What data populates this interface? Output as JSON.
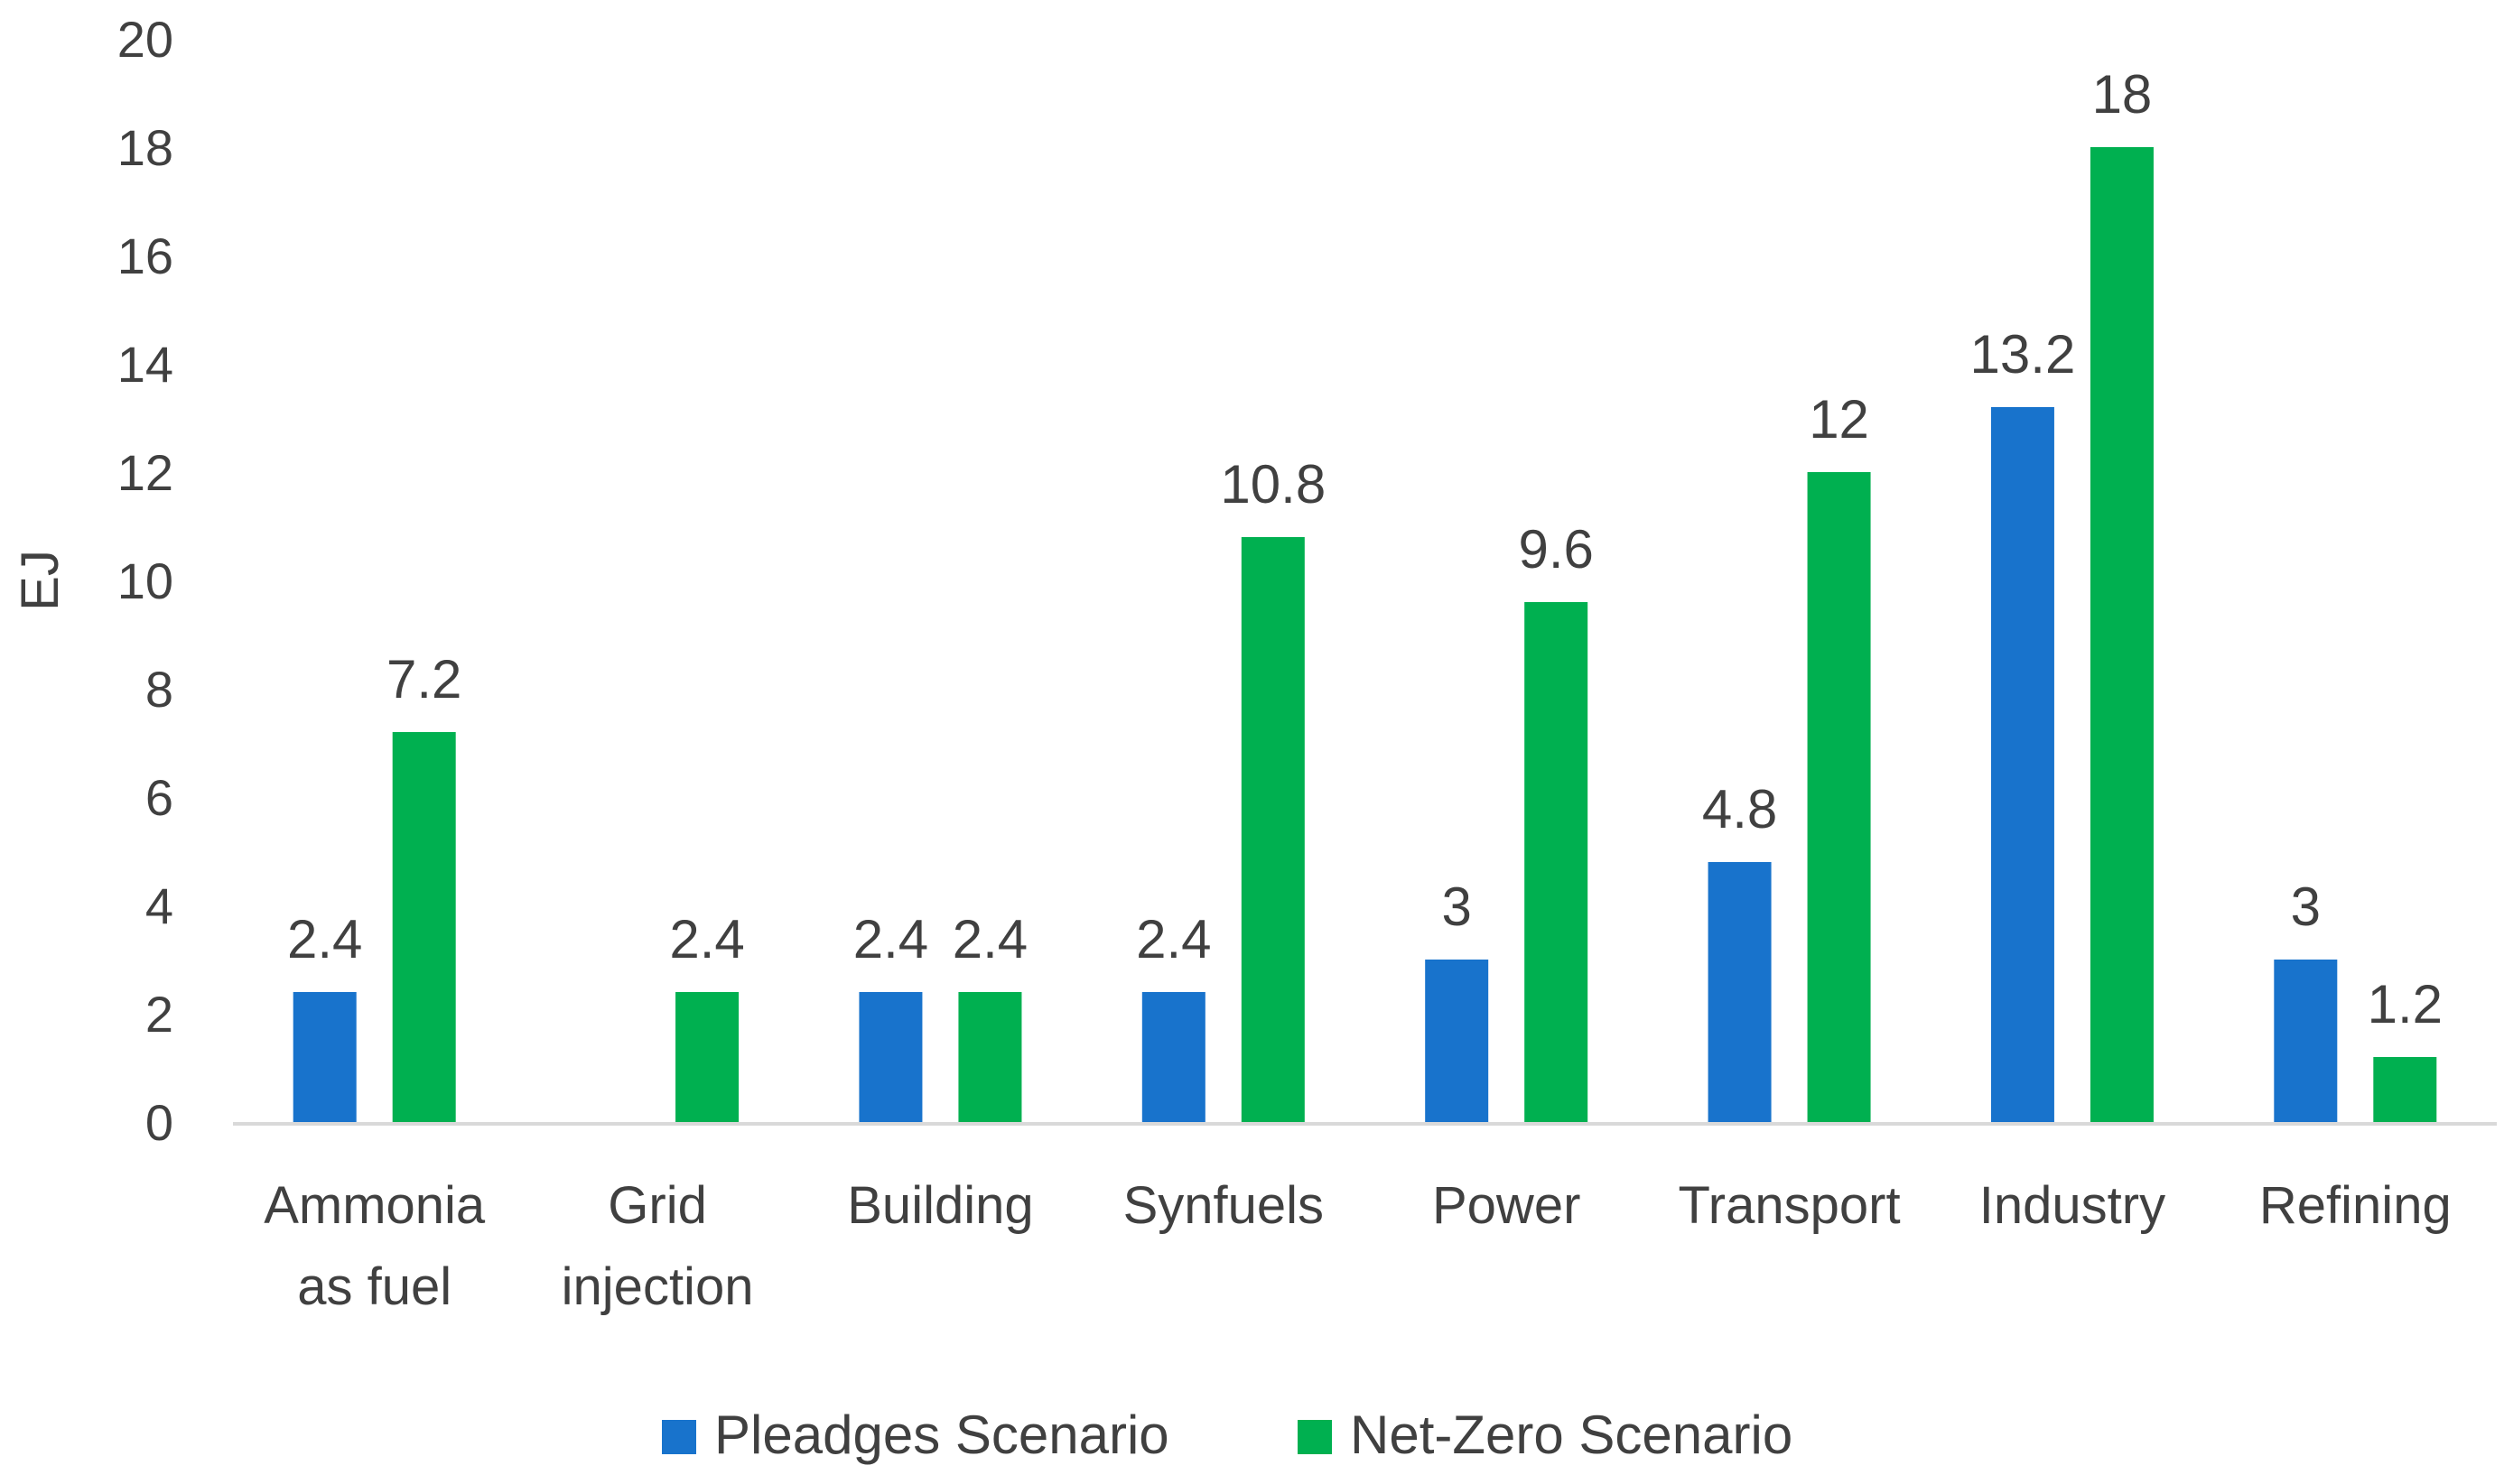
{
  "chart_data": {
    "type": "bar",
    "title": "",
    "xlabel": "",
    "ylabel": "EJ",
    "ylim": [
      0,
      20
    ],
    "ytick_step": 2,
    "grid": false,
    "legend_position": "bottom",
    "categories": [
      [
        "Ammonia",
        "as fuel"
      ],
      [
        "Grid",
        "injection"
      ],
      [
        "Building"
      ],
      [
        "Synfuels"
      ],
      [
        "Power"
      ],
      [
        "Transport"
      ],
      [
        "Industry"
      ],
      [
        "Refining"
      ]
    ],
    "series": [
      {
        "name": "Pleadges Scenario",
        "color": "#1873CC",
        "values": [
          2.4,
          null,
          2.4,
          2.4,
          3,
          4.8,
          13.2,
          3
        ]
      },
      {
        "name": "Net-Zero Scenario",
        "color": "#00B050",
        "values": [
          7.2,
          2.4,
          2.4,
          10.8,
          9.6,
          12,
          18,
          1.2
        ]
      }
    ]
  }
}
